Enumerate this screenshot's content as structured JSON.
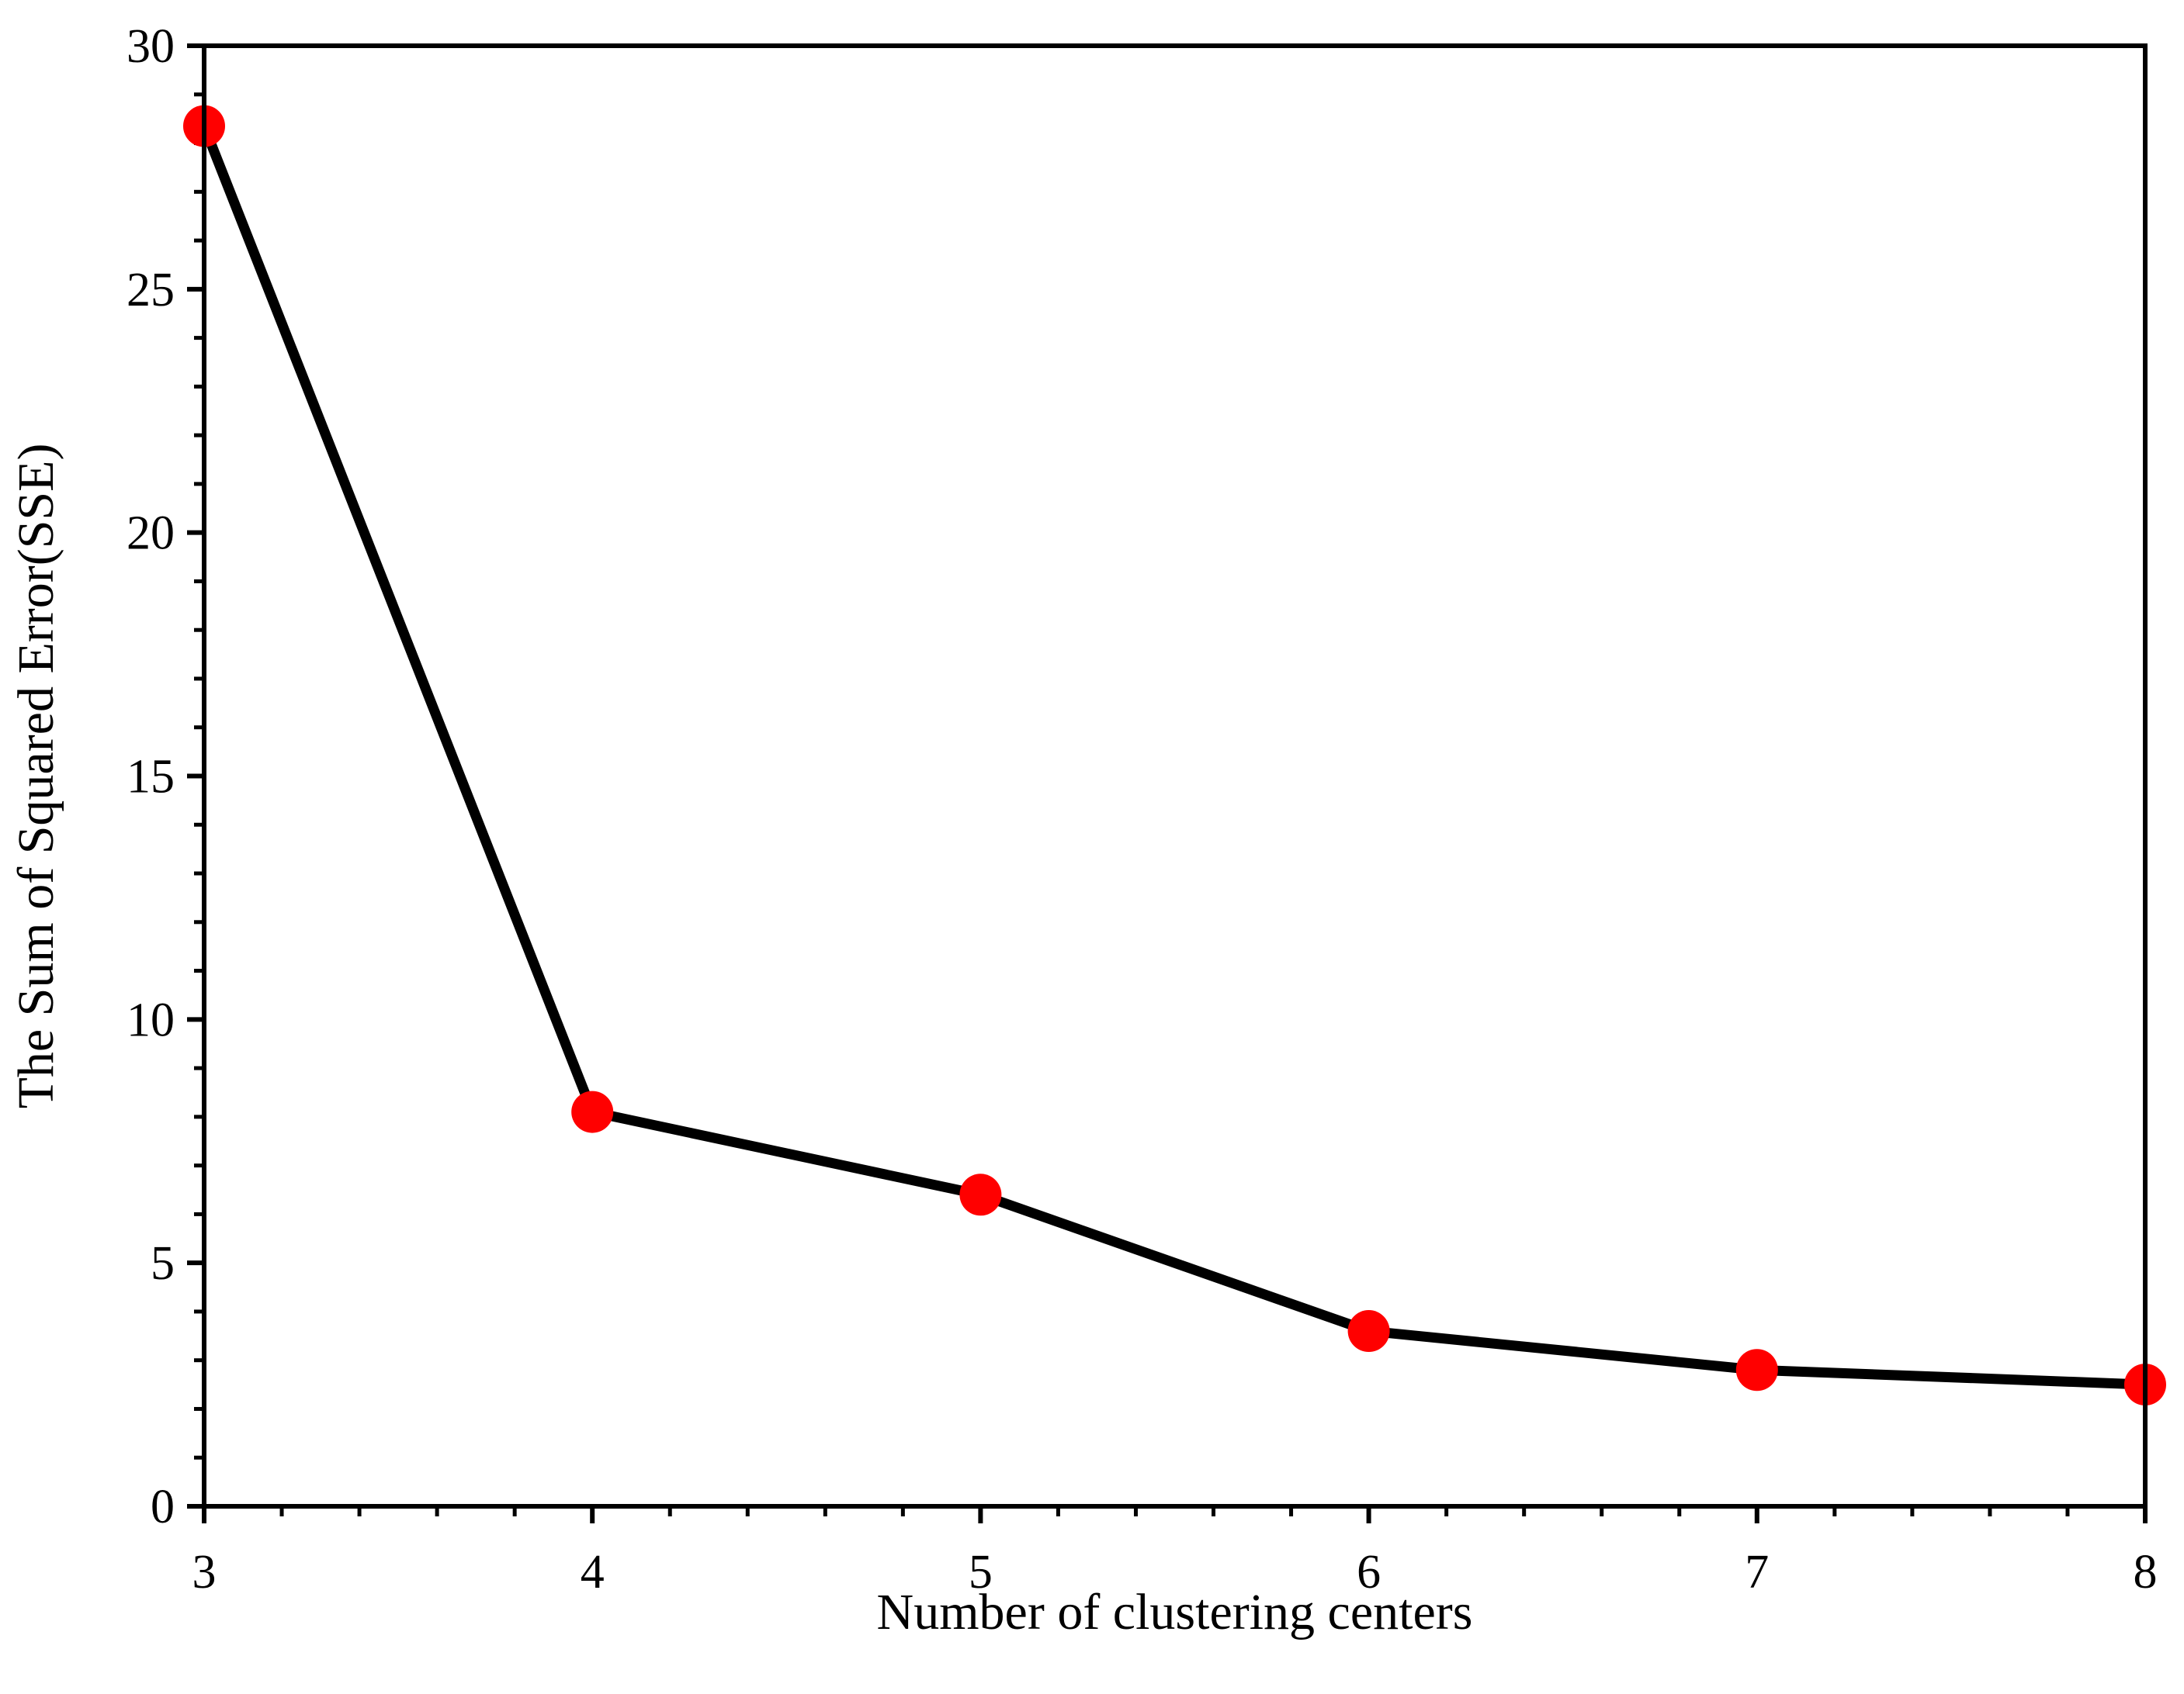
{
  "chart_data": {
    "type": "line",
    "title": "",
    "xlabel": "Number of clustering centers",
    "ylabel": "The Sum of Squared Error(SSE)",
    "xlim": [
      3,
      8
    ],
    "ylim": [
      0,
      30
    ],
    "x_ticks": [
      3,
      4,
      5,
      6,
      7,
      8
    ],
    "y_ticks": [
      0,
      5,
      10,
      15,
      20,
      25,
      30
    ],
    "x_minor_per_major": 5,
    "y_minor_per_major": 5,
    "grid": false,
    "legend": null,
    "series": [
      {
        "x": [
          3,
          4,
          5,
          6,
          7,
          8
        ],
        "y": [
          28.35,
          8.1,
          6.4,
          3.6,
          2.8,
          2.5
        ],
        "line_color": "#000000",
        "marker_color": "#ff0000",
        "marker": "circle"
      }
    ]
  }
}
